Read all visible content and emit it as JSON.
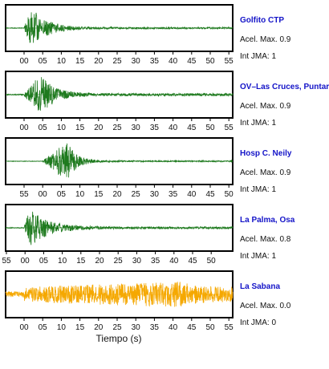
{
  "chart_data": {
    "type": "line",
    "xlabel": "Tiempo (s)",
    "panels": [
      {
        "station": "Golfito CTP",
        "accel_label": "Acel. Max. 0.9",
        "jma_label": "Int JMA: 1",
        "color": "#1e7a1e",
        "tick_labels": [
          "00",
          "05",
          "10",
          "15",
          "20",
          "25",
          "30",
          "35",
          "40",
          "45",
          "50",
          "55"
        ],
        "signal": {
          "onset_s": 0,
          "peak_s": 2,
          "peak_rel": 0.95,
          "decay_s": 4.0,
          "noise_rel": 0.04,
          "seed": 11
        }
      },
      {
        "station": "OV–Las Cruces, Puntar",
        "accel_label": "Acel. Max. 0.9",
        "jma_label": "Int JMA: 1",
        "color": "#1e7a1e",
        "tick_labels": [
          "00",
          "05",
          "10",
          "15",
          "20",
          "25",
          "30",
          "35",
          "40",
          "45",
          "50",
          "55"
        ],
        "signal": {
          "onset_s": 0,
          "peak_s": 4.5,
          "peak_rel": 0.95,
          "decay_s": 3.5,
          "noise_rel": 0.06,
          "seed": 23
        }
      },
      {
        "station": "Hosp C. Neily",
        "accel_label": "Acel. Max. 0.9",
        "jma_label": "Int JMA: 1",
        "color": "#1e7a1e",
        "tick_labels": [
          "55",
          "00",
          "05",
          "10",
          "15",
          "20",
          "25",
          "30",
          "35",
          "40",
          "45",
          "50"
        ],
        "signal": {
          "onset_s": 5,
          "peak_s": 11.5,
          "peak_rel": 0.95,
          "decay_s": 2.5,
          "noise_rel": 0.03,
          "seed": 37
        }
      },
      {
        "station": "La Palma, Osa",
        "accel_label": "Acel. Max. 0.8",
        "jma_label": "Int JMA: 1",
        "color": "#1e7a1e",
        "tick_labels": [
          "55",
          "00",
          "05",
          "10",
          "15",
          "20",
          "25",
          "30",
          "35",
          "40",
          "45",
          "50"
        ],
        "signal": {
          "onset_s": 0,
          "peak_s": 1.5,
          "peak_rel": 0.9,
          "decay_s": 5.0,
          "noise_rel": 0.05,
          "seed": 41
        }
      },
      {
        "station": "La Sabana",
        "accel_label": "Acel. Max. 0.0",
        "jma_label": "Int JMA: 0",
        "color": "#f5a800",
        "tick_labels": [
          "00",
          "05",
          "10",
          "15",
          "20",
          "25",
          "30",
          "35",
          "40",
          "45",
          "50",
          "55"
        ],
        "signal": {
          "onset_s": 0,
          "peak_s": 42,
          "peak_rel": 0.6,
          "decay_s": 4.0,
          "noise_rel": 0.35,
          "seed": 53
        }
      }
    ]
  }
}
